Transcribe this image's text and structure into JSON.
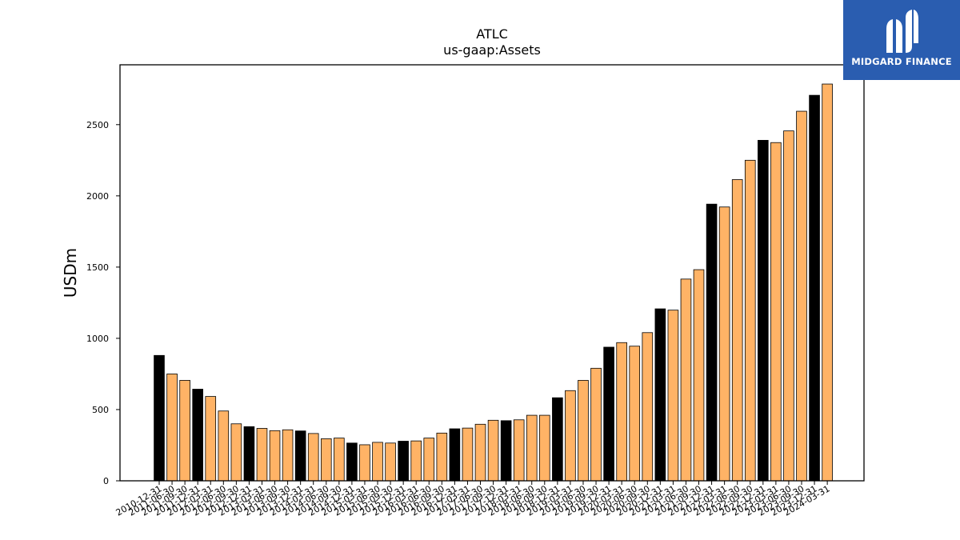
{
  "chart_data": {
    "type": "bar",
    "title": "ATLC",
    "subtitle": "us-gaap:Assets",
    "xlabel": "",
    "ylabel": "USDm",
    "ylim": [
      0,
      2920
    ],
    "yticks": [
      0,
      500,
      1000,
      1500,
      2000,
      2500
    ],
    "grid": false,
    "colors": {
      "annual": "#000000",
      "quarter": "#ffb366",
      "edge": "#000000"
    },
    "categories": [
      "2010-12-31",
      "2011-06-30",
      "2011-09-30",
      "2011-12-31",
      "2012-03-31",
      "2012-06-30",
      "2012-09-30",
      "2012-12-31",
      "2013-03-31",
      "2013-06-30",
      "2013-09-30",
      "2013-12-31",
      "2014-03-31",
      "2014-06-30",
      "2014-09-30",
      "2014-12-31",
      "2015-03-31",
      "2015-06-30",
      "2015-09-30",
      "2015-12-31",
      "2016-03-31",
      "2016-06-30",
      "2016-09-30",
      "2016-12-31",
      "2017-03-31",
      "2017-06-30",
      "2017-09-30",
      "2017-12-31",
      "2018-03-31",
      "2018-06-30",
      "2018-09-30",
      "2018-12-31",
      "2019-03-31",
      "2019-06-30",
      "2019-09-30",
      "2019-12-31",
      "2020-03-31",
      "2020-06-30",
      "2020-09-30",
      "2020-12-31",
      "2021-03-31",
      "2021-06-30",
      "2021-09-30",
      "2021-12-31",
      "2022-03-31",
      "2022-06-30",
      "2022-09-30",
      "2022-12-31",
      "2023-03-31",
      "2023-06-30",
      "2023-09-30",
      "2023-12-31",
      "2024-03-31"
    ],
    "values": [
      880,
      750,
      705,
      643,
      592,
      490,
      400,
      380,
      368,
      352,
      358,
      350,
      332,
      295,
      300,
      265,
      253,
      270,
      265,
      278,
      280,
      300,
      335,
      365,
      370,
      397,
      425,
      422,
      428,
      460,
      460,
      583,
      633,
      705,
      790,
      938,
      970,
      945,
      1040,
      1207,
      1198,
      1416,
      1482,
      1942,
      1922,
      2114,
      2250,
      2390,
      2374,
      2456,
      2594,
      2706,
      2785
    ],
    "is_annual": [
      true,
      false,
      false,
      true,
      false,
      false,
      false,
      true,
      false,
      false,
      false,
      true,
      false,
      false,
      false,
      true,
      false,
      false,
      false,
      true,
      false,
      false,
      false,
      true,
      false,
      false,
      false,
      true,
      false,
      false,
      false,
      true,
      false,
      false,
      false,
      true,
      false,
      false,
      false,
      true,
      false,
      false,
      false,
      true,
      false,
      false,
      false,
      true,
      false,
      false,
      false,
      true,
      false
    ]
  },
  "logo": {
    "text": "MIDGARD FINANCE",
    "icon": "midgard-logo-icon",
    "bg": "#2a5db0"
  }
}
